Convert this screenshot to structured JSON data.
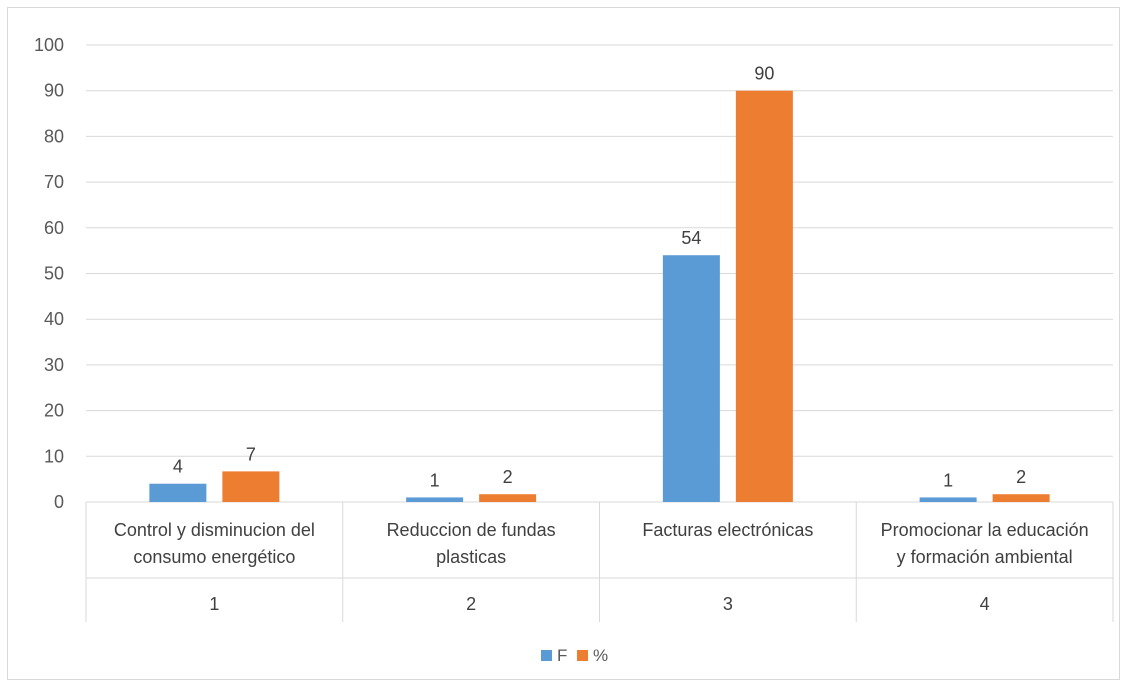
{
  "chart_data": {
    "type": "bar",
    "title": "",
    "xlabel": "",
    "ylabel": "",
    "ylim": [
      0,
      100
    ],
    "yticks": [
      0,
      10,
      20,
      30,
      40,
      50,
      60,
      70,
      80,
      90,
      100
    ],
    "grid": true,
    "legend_position": "bottom",
    "categories": [
      {
        "lines": [
          "Control y disminucion del",
          "consumo energético"
        ],
        "index": "1"
      },
      {
        "lines": [
          "Reduccion de fundas",
          "plasticas"
        ],
        "index": "2"
      },
      {
        "lines": [
          "Facturas electrónicas"
        ],
        "index": "3"
      },
      {
        "lines": [
          "Promocionar la educación",
          "y formación ambiental"
        ],
        "index": "4"
      }
    ],
    "series": [
      {
        "name": "F",
        "color": "#5B9BD5",
        "values": [
          4,
          1,
          54,
          1
        ],
        "labels": [
          "4",
          "1",
          "54",
          "1"
        ]
      },
      {
        "name": "%",
        "color": "#ED7D31",
        "values": [
          6.7,
          1.7,
          90,
          1.7
        ],
        "labels": [
          "7",
          "2",
          "90",
          "2"
        ]
      }
    ]
  }
}
